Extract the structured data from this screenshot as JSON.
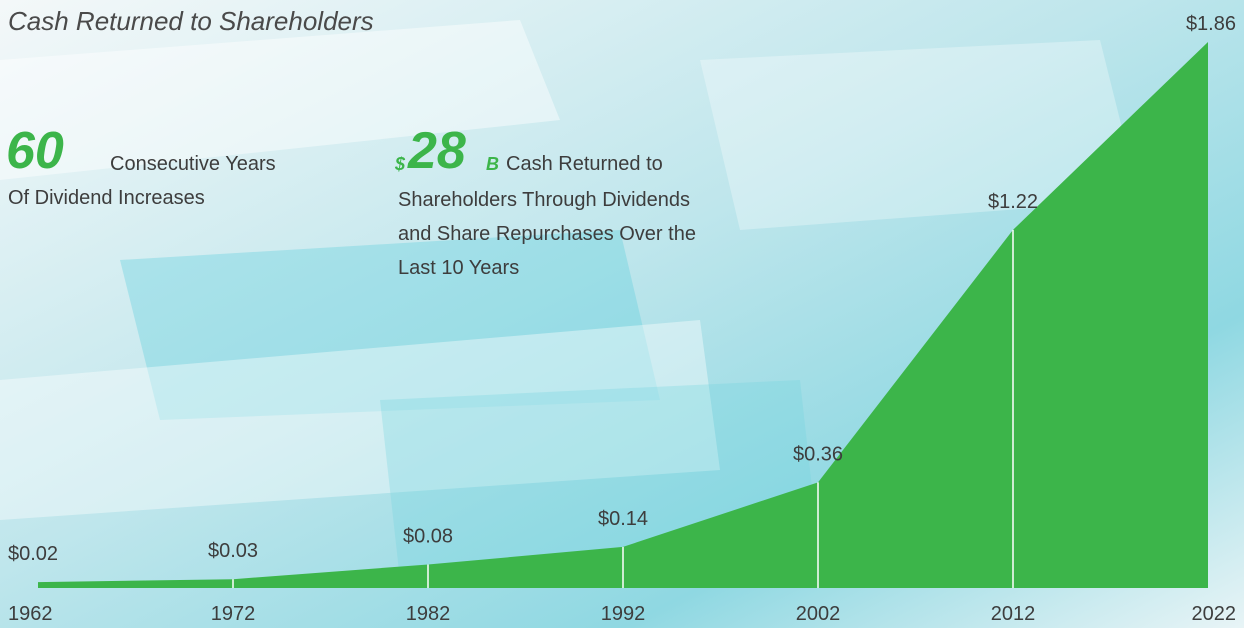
{
  "chart_data": {
    "type": "area",
    "title": "Cash Returned to Shareholders",
    "x": [
      1962,
      1972,
      1982,
      1992,
      2002,
      2012,
      2022
    ],
    "values": [
      0.02,
      0.03,
      0.08,
      0.14,
      0.36,
      1.22,
      1.86
    ],
    "value_labels": [
      "$0.02",
      "$0.03",
      "$0.08",
      "$0.14",
      "$0.36",
      "$1.22",
      "$1.86"
    ],
    "color": "#3cb54a",
    "annotations": [
      {
        "number": "60",
        "lines": [
          "Consecutive Years",
          "Of Dividend Increases"
        ]
      },
      {
        "prefix": "$",
        "number": "28",
        "suffix": "B",
        "lines": [
          "Cash Returned to",
          "Shareholders Through Dividends",
          "and Share Repurchases Over the",
          "Last 10 Years"
        ]
      }
    ]
  }
}
